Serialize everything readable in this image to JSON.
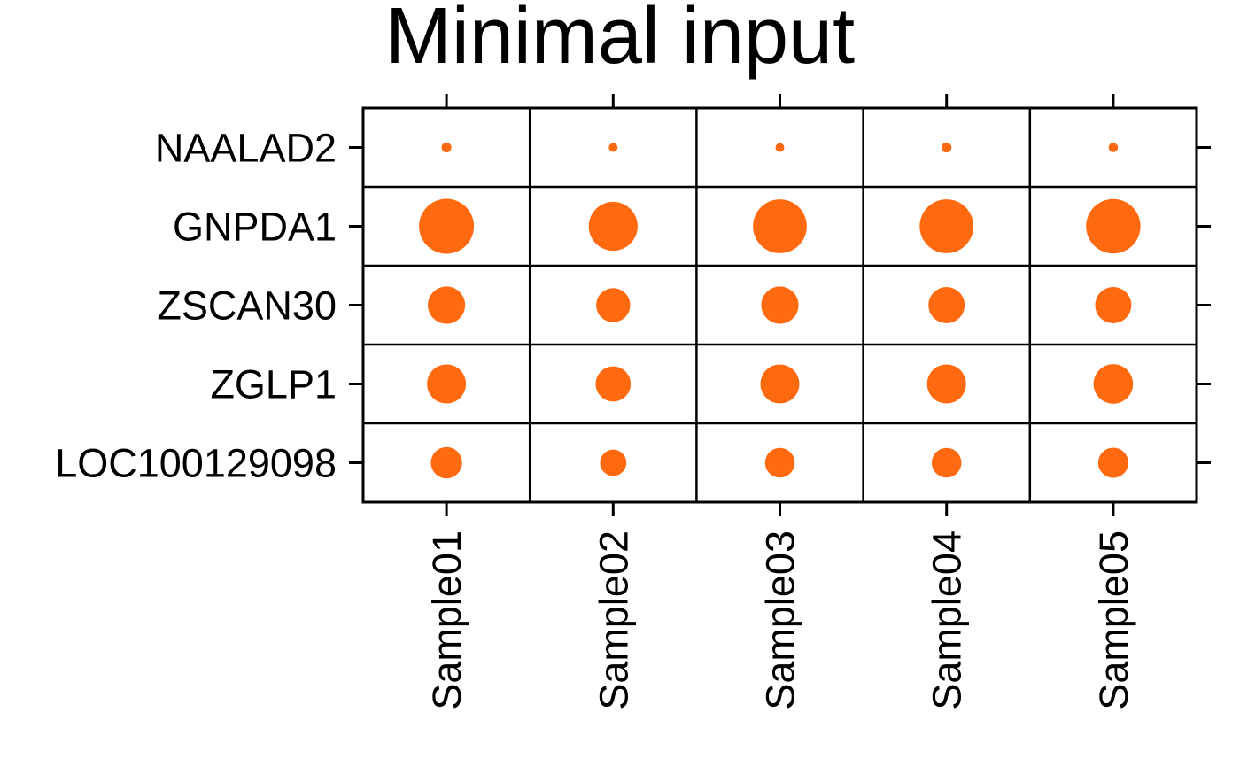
{
  "chart_data": {
    "type": "dotplot",
    "title": "Minimal input",
    "rows": [
      "NAALAD2",
      "GNPDA1",
      "ZSCAN30",
      "ZGLP1",
      "LOC100129098"
    ],
    "columns": [
      "Sample01",
      "Sample02",
      "Sample03",
      "Sample04",
      "Sample05"
    ],
    "dot_color": "#FF6A10",
    "values": [
      [
        0.18,
        0.16,
        0.16,
        0.18,
        0.17
      ],
      [
        1.0,
        0.89,
        0.98,
        0.98,
        0.99
      ],
      [
        0.68,
        0.62,
        0.68,
        0.66,
        0.66
      ],
      [
        0.71,
        0.64,
        0.71,
        0.71,
        0.72
      ],
      [
        0.57,
        0.48,
        0.54,
        0.54,
        0.55
      ]
    ],
    "size_legend": false,
    "grid": true
  }
}
